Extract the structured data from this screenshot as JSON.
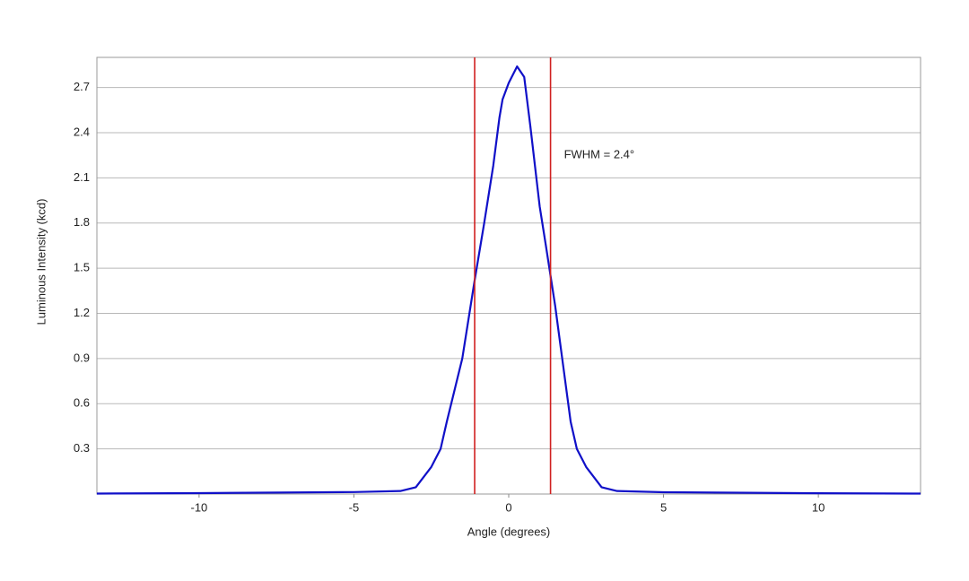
{
  "chart_data": {
    "type": "line",
    "x_label": "Angle (degrees)",
    "y_label": "Luminous Intensity (kcd)",
    "annotation": "FWHM = 2.4°",
    "x": [
      -13.3,
      -10,
      -5,
      -3.5,
      -3,
      -2.5,
      -2.2,
      -2,
      -1.5,
      -1.1,
      -0.8,
      -0.5,
      -0.3,
      -0.2,
      0,
      0.27,
      0.5,
      0.7,
      1,
      1.2,
      1.35,
      1.5,
      2,
      2.2,
      2.5,
      3,
      3.5,
      5,
      10,
      13.3
    ],
    "series": [
      {
        "color": "#1010c8",
        "values": [
          0.003,
          0.006,
          0.013,
          0.02,
          0.045,
          0.18,
          0.3,
          0.48,
          0.9,
          1.42,
          1.79,
          2.18,
          2.5,
          2.62,
          2.73,
          2.84,
          2.77,
          2.44,
          1.91,
          1.65,
          1.45,
          1.25,
          0.48,
          0.3,
          0.18,
          0.045,
          0.02,
          0.012,
          0.005,
          0.003
        ]
      }
    ],
    "vlines": [
      -1.1,
      1.35
    ],
    "vline_color": "#d02020",
    "xlim": [
      -13.3,
      13.3
    ],
    "xticks": [
      -10,
      -5,
      0,
      5,
      10
    ],
    "ylim": [
      0,
      2.9
    ],
    "yticks": [
      0.3,
      0.6,
      0.9,
      1.2,
      1.5,
      1.8,
      2.1,
      2.4,
      2.7
    ],
    "grid": true
  }
}
